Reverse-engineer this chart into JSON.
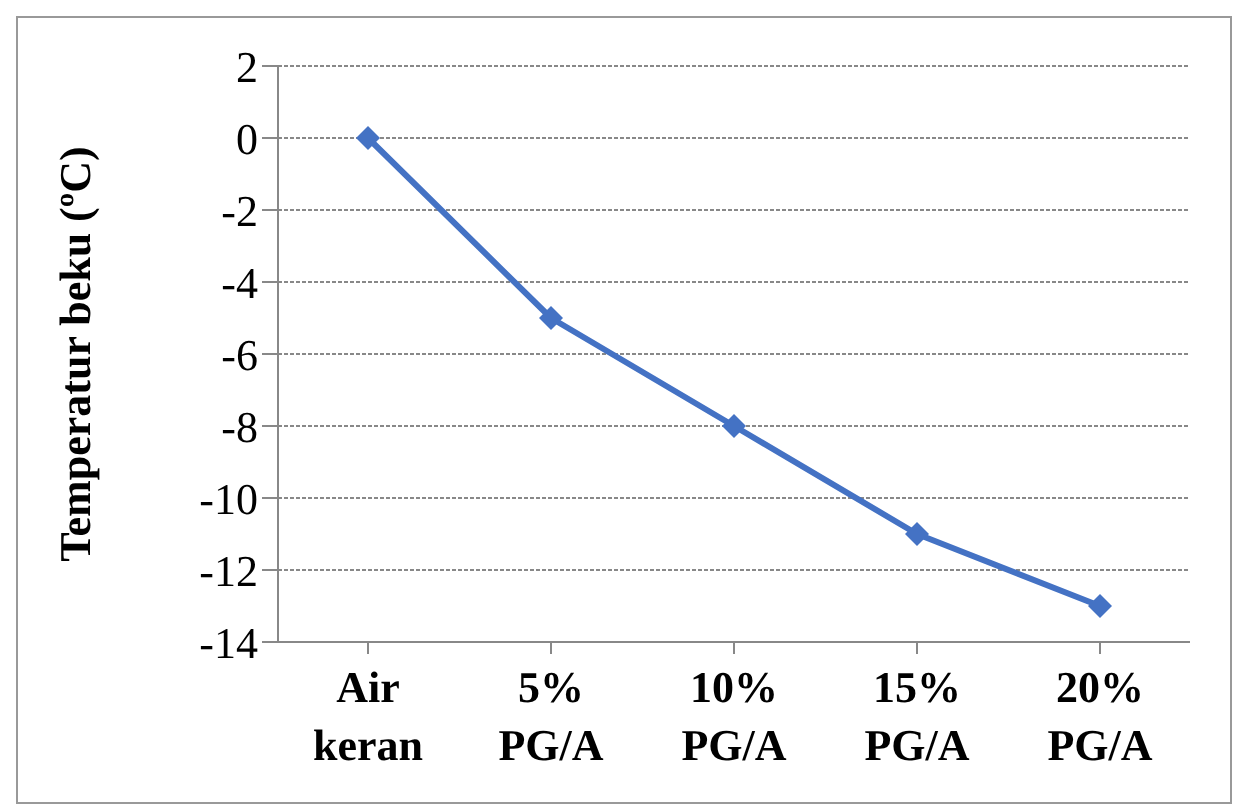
{
  "chart_data": {
    "type": "line",
    "ylabel": "Temperatur beku (ºC)",
    "categories": [
      "Air keran",
      "5% PG/A",
      "10% PG/A",
      "15% PG/A",
      "20% PG/A"
    ],
    "series": [
      {
        "color": "#4472c4",
        "values": [
          0,
          -5,
          -8,
          -11,
          -13
        ]
      }
    ],
    "ylim": [
      -14,
      2
    ],
    "yticks": [
      -14,
      -12,
      -10,
      -8,
      -6,
      -4,
      -2,
      0,
      2
    ],
    "grid": "y",
    "marker": "diamond",
    "line_style": "solid",
    "legend": false
  }
}
